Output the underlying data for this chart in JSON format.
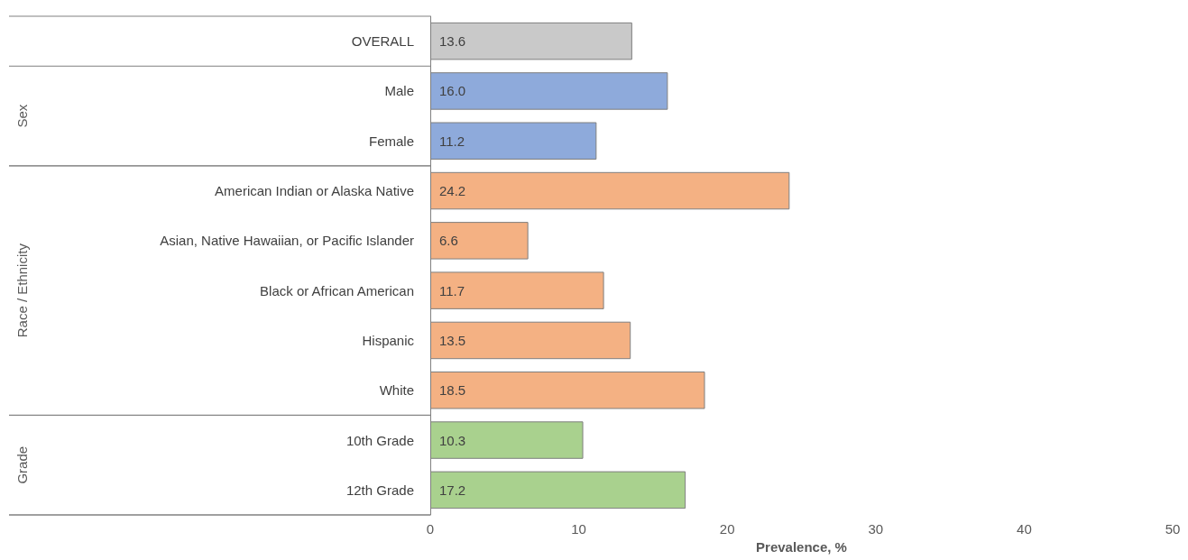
{
  "chart_data": {
    "type": "bar",
    "orientation": "horizontal",
    "categories": [
      "OVERALL",
      "Male",
      "Female",
      "American Indian or Alaska Native",
      "Asian, Native Hawaiian, or Pacific Islander",
      "Black or African American",
      "Hispanic",
      "White",
      "10th Grade",
      "12th Grade"
    ],
    "values": [
      13.6,
      16.0,
      11.2,
      24.2,
      6.6,
      11.7,
      13.5,
      18.5,
      10.3,
      17.2
    ],
    "value_labels": [
      "13.6",
      "16.0",
      "11.2",
      "24.2",
      "6.6",
      "11.7",
      "13.5",
      "18.5",
      "10.3",
      "17.2"
    ],
    "colors": [
      "#c9c9c9",
      "#8eaadb",
      "#8eaadb",
      "#f4b183",
      "#f4b183",
      "#f4b183",
      "#f4b183",
      "#f4b183",
      "#a9d18e",
      "#a9d18e"
    ],
    "xlabel": "Prevalence, %",
    "xlim": [
      0,
      50
    ],
    "xticks": [
      0,
      10,
      20,
      30,
      40,
      50
    ],
    "annotations": [
      "Sex",
      "Race / Ethnicity",
      "Grade"
    ],
    "grid": false
  }
}
